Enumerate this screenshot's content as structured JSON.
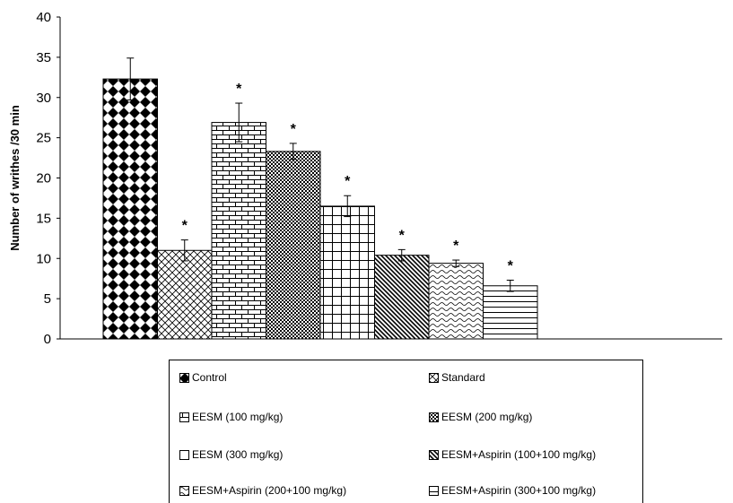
{
  "chart_data": {
    "type": "bar",
    "title": "",
    "xlabel": "",
    "ylabel": "Number of writhes /30 min",
    "ylim": [
      0,
      40
    ],
    "yticks": [
      0,
      5,
      10,
      15,
      20,
      25,
      30,
      35,
      40
    ],
    "grid": false,
    "legend_position": "bottom",
    "series": [
      {
        "name": "Control",
        "value": 32.3,
        "error": 2.6,
        "significant": false,
        "pattern": "diamond-checker"
      },
      {
        "name": "Standard",
        "value": 11.0,
        "error": 1.3,
        "significant": true,
        "pattern": "crosshatch-diagonal"
      },
      {
        "name": "EESM (100 mg/kg)",
        "value": 26.9,
        "error": 2.4,
        "significant": true,
        "pattern": "brick"
      },
      {
        "name": "EESM (200 mg/kg)",
        "value": 23.3,
        "error": 1.0,
        "significant": true,
        "pattern": "checker-fine"
      },
      {
        "name": "EESM (300 mg/kg)",
        "value": 16.5,
        "error": 1.3,
        "significant": true,
        "pattern": "grid"
      },
      {
        "name": "EESM+Aspirin (100+100 mg/kg)",
        "value": 10.4,
        "error": 0.7,
        "significant": true,
        "pattern": "diagonal-dense"
      },
      {
        "name": "EESM+Aspirin (200+100 mg/kg)",
        "value": 9.4,
        "error": 0.4,
        "significant": true,
        "pattern": "wave"
      },
      {
        "name": "EESM+Aspirin (300+100 mg/kg)",
        "value": 6.6,
        "error": 0.7,
        "significant": true,
        "pattern": "horizontal-lines"
      }
    ],
    "significance_marker": "*"
  },
  "legend": {
    "items": [
      {
        "label": "Control"
      },
      {
        "label": "Standard"
      },
      {
        "label": "EESM (100 mg/kg)"
      },
      {
        "label": "EESM (200 mg/kg)"
      },
      {
        "label": "EESM (300 mg/kg)"
      },
      {
        "label": "EESM+Aspirin (100+100 mg/kg)"
      },
      {
        "label": "EESM+Aspirin (200+100 mg/kg)"
      },
      {
        "label": "EESM+Aspirin (300+100 mg/kg)"
      }
    ]
  }
}
